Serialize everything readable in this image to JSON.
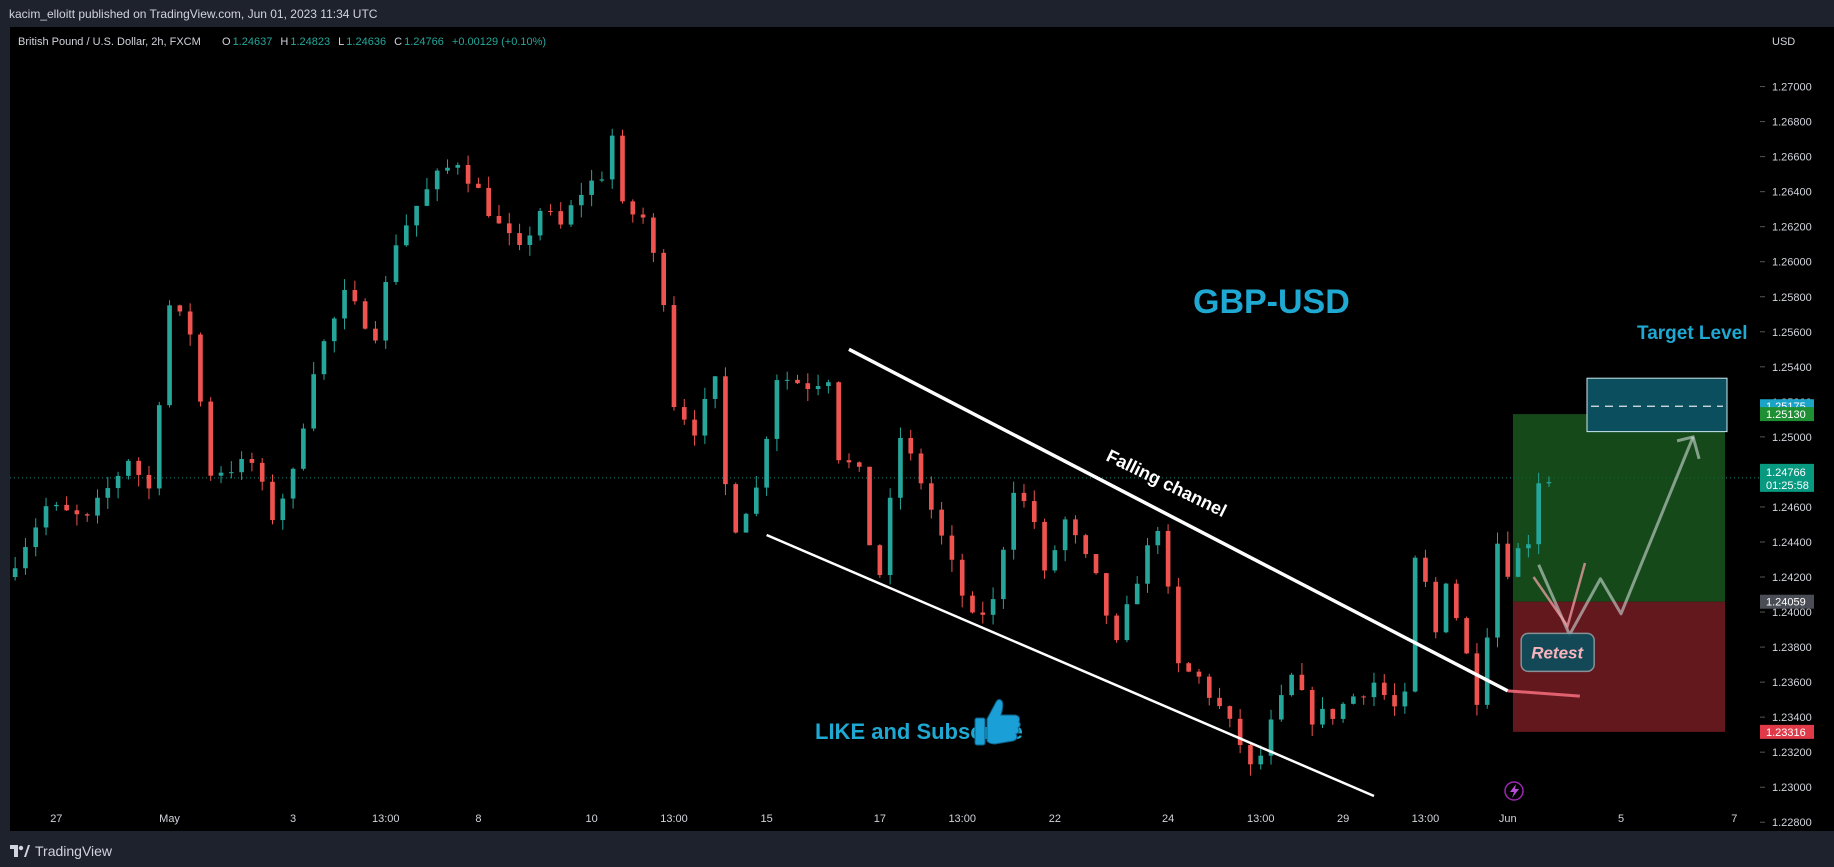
{
  "header": {
    "published_by": "kacim_elloitt published on TradingView.com, Jun 01, 2023 11:34 UTC"
  },
  "footer": {
    "brand": "TradingView"
  },
  "legend": {
    "symbol": "British Pound / U.S. Dollar, 2h, FXCM",
    "open_label": "O",
    "open": "1.24637",
    "high_label": "H",
    "high": "1.24823",
    "low_label": "L",
    "low": "1.24636",
    "close_label": "C",
    "close": "1.24766",
    "change": "+0.00129 (+0.10%)"
  },
  "annotations": {
    "title": "GBP-USD",
    "target_label": "Target Level",
    "channel_label": "Falling channel",
    "retest_label": "Retest",
    "cta": "LIKE and Subscribe"
  },
  "price_tags": {
    "upper_target": "1.25175",
    "target": "1.25130",
    "current": "1.24766",
    "countdown": "01:25:58",
    "entry": "1.24059",
    "stop": "1.23316"
  },
  "colors": {
    "background": "#000000",
    "up": "#26a69a",
    "down": "#ef5350",
    "accent": "#1fa8d1",
    "profit_zone": "#1b5e20",
    "loss_zone": "#6b1a1f"
  },
  "chart_data": {
    "type": "candlestick",
    "currency": "USD",
    "timeframe": "2h",
    "ylim": [
      1.2275,
      1.2734
    ],
    "y_ticks": [
      "1.27000",
      "1.26800",
      "1.26600",
      "1.26400",
      "1.26200",
      "1.26000",
      "1.25800",
      "1.25600",
      "1.25400",
      "1.25200",
      "1.25000",
      "1.24800",
      "1.24600",
      "1.24400",
      "1.24200",
      "1.24000",
      "1.23800",
      "1.23600",
      "1.23400",
      "1.23200",
      "1.23000",
      "1.22800"
    ],
    "x_ticks": [
      "27",
      "May",
      "3",
      "13:00",
      "8",
      "10",
      "13:00",
      "15",
      "17",
      "13:00",
      "22",
      "24",
      "13:00",
      "29",
      "13:00",
      "Jun",
      "5",
      "7"
    ],
    "x_index": [
      4,
      15,
      27,
      36,
      45,
      56,
      64,
      73,
      84,
      92,
      101,
      112,
      121,
      129,
      137,
      145,
      156,
      167
    ],
    "bars_total": 170,
    "path": [
      [
        0,
        1.242
      ],
      [
        4,
        1.246
      ],
      [
        8,
        1.2452
      ],
      [
        12,
        1.2488
      ],
      [
        14,
        1.247
      ],
      [
        16,
        1.2575
      ],
      [
        18,
        1.256
      ],
      [
        20,
        1.248
      ],
      [
        24,
        1.2485
      ],
      [
        26,
        1.2455
      ],
      [
        28,
        1.2478
      ],
      [
        30,
        1.254
      ],
      [
        33,
        1.258
      ],
      [
        36,
        1.256
      ],
      [
        38,
        1.2612
      ],
      [
        40,
        1.2632
      ],
      [
        42,
        1.2648
      ],
      [
        44,
        1.2658
      ],
      [
        46,
        1.264
      ],
      [
        48,
        1.262
      ],
      [
        50,
        1.2605
      ],
      [
        52,
        1.263
      ],
      [
        54,
        1.262
      ],
      [
        56,
        1.264
      ],
      [
        58,
        1.265
      ],
      [
        59,
        1.2672
      ],
      [
        60,
        1.263
      ],
      [
        62,
        1.2625
      ],
      [
        64,
        1.258
      ],
      [
        65,
        1.252
      ],
      [
        67,
        1.2505
      ],
      [
        69,
        1.253
      ],
      [
        70,
        1.2472
      ],
      [
        71,
        1.245
      ],
      [
        73,
        1.247
      ],
      [
        75,
        1.2535
      ],
      [
        78,
        1.253
      ],
      [
        80,
        1.2535
      ],
      [
        81,
        1.249
      ],
      [
        83,
        1.2478
      ],
      [
        84,
        1.244
      ],
      [
        85,
        1.2422
      ],
      [
        87,
        1.25
      ],
      [
        89,
        1.2475
      ],
      [
        91,
        1.2442
      ],
      [
        93,
        1.241
      ],
      [
        94,
        1.2395
      ],
      [
        96,
        1.2405
      ],
      [
        98,
        1.2472
      ],
      [
        100,
        1.2452
      ],
      [
        101,
        1.242
      ],
      [
        103,
        1.2452
      ],
      [
        106,
        1.2418
      ],
      [
        108,
        1.238
      ],
      [
        110,
        1.242
      ],
      [
        112,
        1.245
      ],
      [
        113,
        1.241
      ],
      [
        114,
        1.2368
      ],
      [
        116,
        1.2362
      ],
      [
        118,
        1.2345
      ],
      [
        120,
        1.2325
      ],
      [
        121,
        1.231
      ],
      [
        122,
        1.2318
      ],
      [
        123,
        1.2335
      ],
      [
        125,
        1.2362
      ],
      [
        127,
        1.234
      ],
      [
        129,
        1.2342
      ],
      [
        131,
        1.2352
      ],
      [
        133,
        1.236
      ],
      [
        135,
        1.2345
      ],
      [
        136,
        1.235
      ],
      [
        137,
        1.2428
      ],
      [
        138,
        1.2415
      ],
      [
        139,
        1.2388
      ],
      [
        140,
        1.242
      ],
      [
        141,
        1.2398
      ],
      [
        143,
        1.2352
      ],
      [
        144,
        1.239
      ],
      [
        145,
        1.244
      ],
      [
        146,
        1.2425
      ],
      [
        147,
        1.2435
      ],
      [
        148,
        1.2442
      ],
      [
        149,
        1.2476
      ]
    ],
    "channel": {
      "upper": [
        [
          81,
          1.255
        ],
        [
          145,
          1.2355
        ]
      ],
      "lower": [
        [
          73,
          1.2444
        ],
        [
          132,
          1.2295
        ]
      ]
    },
    "target_box": {
      "top": 1.25335,
      "bottom": 1.2503,
      "level": 1.25175
    },
    "position": {
      "entry": 1.24059,
      "target": 1.2513,
      "stop": 1.23316
    }
  }
}
